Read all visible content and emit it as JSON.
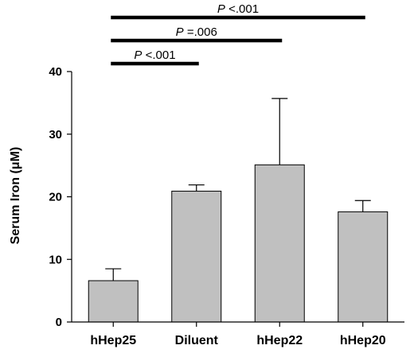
{
  "chart_data": {
    "type": "bar",
    "categories": [
      "hHep25",
      "Diluent",
      "hHep22",
      "hHep20"
    ],
    "values": [
      6.6,
      20.9,
      25.1,
      17.6
    ],
    "errors": [
      1.9,
      1.0,
      10.6,
      1.8
    ],
    "ylabel_prefix": "Serum Iron (",
    "ylabel_unit": "μM",
    "ylabel_suffix": ")",
    "xlabel": "",
    "ylim": [
      0,
      40
    ],
    "yticks": [
      0,
      10,
      20,
      30,
      40
    ],
    "grid": false,
    "bar_color": "#c0c0c0",
    "significance": [
      {
        "from": 0,
        "to": 3,
        "p_letter": "P",
        "p_text": " <.001"
      },
      {
        "from": 0,
        "to": 2,
        "p_letter": "P",
        "p_text": " =.006"
      },
      {
        "from": 0,
        "to": 1,
        "p_letter": "P",
        "p_text": " <.001"
      }
    ]
  }
}
